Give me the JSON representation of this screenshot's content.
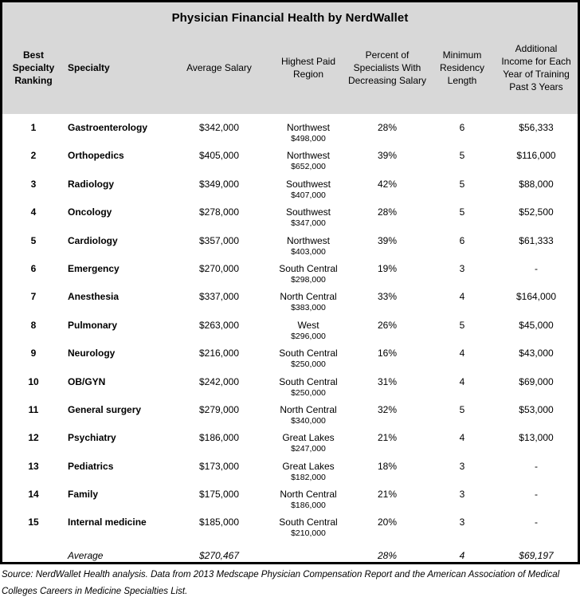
{
  "title": "Physician Financial Health by NerdWallet",
  "columns": [
    {
      "label": "Best\nSpecialty\nRanking"
    },
    {
      "label": "Specialty"
    },
    {
      "label": "Average Salary"
    },
    {
      "label": "Highest Paid\nRegion"
    },
    {
      "label": "Percent of\nSpecialists With\nDecreasing Salary"
    },
    {
      "label": "Minimum\nResidency\nLength"
    },
    {
      "label": "Additional\nIncome for Each\nYear of Training\nPast 3 Years"
    }
  ],
  "rows": [
    {
      "rank": "1",
      "specialty": "Gastroenterology",
      "avg_salary": "$342,000",
      "region": "Northwest",
      "region_salary": "$498,000",
      "pct_decreasing": "28%",
      "residency": "6",
      "additional_income": "$56,333"
    },
    {
      "rank": "2",
      "specialty": "Orthopedics",
      "avg_salary": "$405,000",
      "region": "Northwest",
      "region_salary": "$652,000",
      "pct_decreasing": "39%",
      "residency": "5",
      "additional_income": "$116,000"
    },
    {
      "rank": "3",
      "specialty": "Radiology",
      "avg_salary": "$349,000",
      "region": "Southwest",
      "region_salary": "$407,000",
      "pct_decreasing": "42%",
      "residency": "5",
      "additional_income": "$88,000"
    },
    {
      "rank": "4",
      "specialty": "Oncology",
      "avg_salary": "$278,000",
      "region": "Southwest",
      "region_salary": "$347,000",
      "pct_decreasing": "28%",
      "residency": "5",
      "additional_income": "$52,500"
    },
    {
      "rank": "5",
      "specialty": "Cardiology",
      "avg_salary": "$357,000",
      "region": "Northwest",
      "region_salary": "$403,000",
      "pct_decreasing": "39%",
      "residency": "6",
      "additional_income": "$61,333"
    },
    {
      "rank": "6",
      "specialty": "Emergency",
      "avg_salary": "$270,000",
      "region": "South Central",
      "region_salary": "$298,000",
      "pct_decreasing": "19%",
      "residency": "3",
      "additional_income": "-"
    },
    {
      "rank": "7",
      "specialty": "Anesthesia",
      "avg_salary": "$337,000",
      "region": "North Central",
      "region_salary": "$383,000",
      "pct_decreasing": "33%",
      "residency": "4",
      "additional_income": "$164,000"
    },
    {
      "rank": "8",
      "specialty": "Pulmonary",
      "avg_salary": "$263,000",
      "region": "West",
      "region_salary": "$296,000",
      "pct_decreasing": "26%",
      "residency": "5",
      "additional_income": "$45,000"
    },
    {
      "rank": "9",
      "specialty": "Neurology",
      "avg_salary": "$216,000",
      "region": "South Central",
      "region_salary": "$250,000",
      "pct_decreasing": "16%",
      "residency": "4",
      "additional_income": "$43,000"
    },
    {
      "rank": "10",
      "specialty": "OB/GYN",
      "avg_salary": "$242,000",
      "region": "South Central",
      "region_salary": "$250,000",
      "pct_decreasing": "31%",
      "residency": "4",
      "additional_income": "$69,000"
    },
    {
      "rank": "11",
      "specialty": "General surgery",
      "avg_salary": "$279,000",
      "region": "North Central",
      "region_salary": "$340,000",
      "pct_decreasing": "32%",
      "residency": "5",
      "additional_income": "$53,000"
    },
    {
      "rank": "12",
      "specialty": "Psychiatry",
      "avg_salary": "$186,000",
      "region": "Great Lakes",
      "region_salary": "$247,000",
      "pct_decreasing": "21%",
      "residency": "4",
      "additional_income": "$13,000"
    },
    {
      "rank": "13",
      "specialty": "Pediatrics",
      "avg_salary": "$173,000",
      "region": "Great Lakes",
      "region_salary": "$182,000",
      "pct_decreasing": "18%",
      "residency": "3",
      "additional_income": "-"
    },
    {
      "rank": "14",
      "specialty": "Family",
      "avg_salary": "$175,000",
      "region": "North Central",
      "region_salary": "$186,000",
      "pct_decreasing": "21%",
      "residency": "3",
      "additional_income": "-"
    },
    {
      "rank": "15",
      "specialty": "Internal medicine",
      "avg_salary": "$185,000",
      "region": "South Central",
      "region_salary": "$210,000",
      "pct_decreasing": "20%",
      "residency": "3",
      "additional_income": "-"
    }
  ],
  "average_row": {
    "label": "Average",
    "avg_salary": "$270,467",
    "pct_decreasing": "28%",
    "residency": "4",
    "additional_income": "$69,197"
  },
  "source": "Source: NerdWallet Health analysis. Data from 2013 Medscape Physician Compensation Report and the American Association of Medical Colleges Careers in Medicine Specialties List.",
  "colors": {
    "header_bg": "#d8d8d8",
    "border": "#000000",
    "text": "#000000"
  },
  "chart_data": {
    "type": "table",
    "title": "Physician Financial Health by NerdWallet",
    "columns": [
      "Best Specialty Ranking",
      "Specialty",
      "Average Salary",
      "Highest Paid Region",
      "Highest Paid Region Salary",
      "Percent of Specialists With Decreasing Salary",
      "Minimum Residency Length (years)",
      "Additional Income for Each Year of Training Past 3 Years"
    ],
    "rows": [
      [
        1,
        "Gastroenterology",
        342000,
        "Northwest",
        498000,
        28,
        6,
        56333
      ],
      [
        2,
        "Orthopedics",
        405000,
        "Northwest",
        652000,
        39,
        5,
        116000
      ],
      [
        3,
        "Radiology",
        349000,
        "Southwest",
        407000,
        42,
        5,
        88000
      ],
      [
        4,
        "Oncology",
        278000,
        "Southwest",
        347000,
        28,
        5,
        52500
      ],
      [
        5,
        "Cardiology",
        357000,
        "Northwest",
        403000,
        39,
        6,
        61333
      ],
      [
        6,
        "Emergency",
        270000,
        "South Central",
        298000,
        19,
        3,
        null
      ],
      [
        7,
        "Anesthesia",
        337000,
        "North Central",
        383000,
        33,
        4,
        164000
      ],
      [
        8,
        "Pulmonary",
        263000,
        "West",
        296000,
        26,
        5,
        45000
      ],
      [
        9,
        "Neurology",
        216000,
        "South Central",
        250000,
        16,
        4,
        43000
      ],
      [
        10,
        "OB/GYN",
        242000,
        "South Central",
        250000,
        31,
        4,
        69000
      ],
      [
        11,
        "General surgery",
        279000,
        "North Central",
        340000,
        32,
        5,
        53000
      ],
      [
        12,
        "Psychiatry",
        186000,
        "Great Lakes",
        247000,
        21,
        4,
        13000
      ],
      [
        13,
        "Pediatrics",
        173000,
        "Great Lakes",
        182000,
        18,
        3,
        null
      ],
      [
        14,
        "Family",
        175000,
        "North Central",
        186000,
        21,
        3,
        null
      ],
      [
        15,
        "Internal medicine",
        185000,
        "South Central",
        210000,
        20,
        3,
        null
      ]
    ],
    "average": [
      "Average",
      270467,
      null,
      null,
      28,
      4,
      69197
    ]
  }
}
